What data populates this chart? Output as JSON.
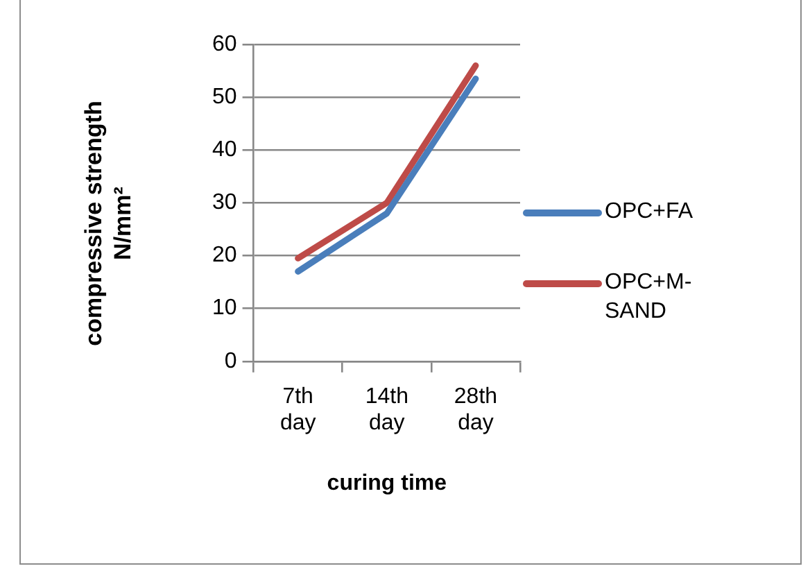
{
  "chart_data": {
    "type": "line",
    "xlabel": "curing time",
    "ylabel": "compressive strength N/mm²",
    "categories": [
      "7th day",
      "14th day",
      "28th day"
    ],
    "series": [
      {
        "name": "OPC+FA",
        "color": "#4a7ebb",
        "values": [
          17,
          28,
          53.5
        ]
      },
      {
        "name": "OPC+M-SAND",
        "color": "#be4b48",
        "values": [
          19.5,
          30,
          56
        ]
      }
    ],
    "ylim": [
      0,
      60
    ],
    "yticks": [
      0,
      10,
      20,
      30,
      40,
      50,
      60
    ],
    "grid": "y",
    "legend": "right",
    "marker": "none",
    "line_style": "solid"
  }
}
